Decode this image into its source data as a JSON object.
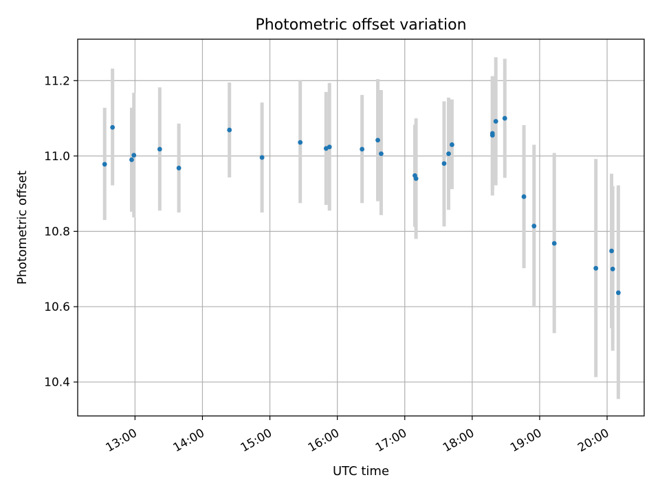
{
  "chart_data": {
    "type": "scatter",
    "title": "Photometric offset variation",
    "xlabel": "UTC time",
    "ylabel": "Photometric offset",
    "x_ticks": [
      "13:00",
      "14:00",
      "15:00",
      "16:00",
      "17:00",
      "18:00",
      "19:00",
      "20:00"
    ],
    "y_ticks": [
      "10.4",
      "10.6",
      "10.8",
      "11.0",
      "11.2"
    ],
    "xlim": [
      "12:09",
      "20:33"
    ],
    "ylim": [
      10.31,
      11.31
    ],
    "grid": true,
    "colors": {
      "marker": "#1f77b4",
      "errorbar": "#d3d3d3",
      "grid": "#b0b0b0",
      "axes": "#000000"
    },
    "series": [
      {
        "points": [
          {
            "x": "12:33",
            "y": 10.978,
            "ylow": 10.83,
            "yhigh": 11.128
          },
          {
            "x": "12:40",
            "y": 11.076,
            "ylow": 10.922,
            "yhigh": 11.232
          },
          {
            "x": "12:57",
            "y": 10.99,
            "ylow": 10.852,
            "yhigh": 11.128
          },
          {
            "x": "12:59",
            "y": 11.002,
            "ylow": 10.837,
            "yhigh": 11.168
          },
          {
            "x": "13:22",
            "y": 11.018,
            "ylow": 10.855,
            "yhigh": 11.182
          },
          {
            "x": "13:39",
            "y": 10.968,
            "ylow": 10.85,
            "yhigh": 11.086
          },
          {
            "x": "14:24",
            "y": 11.069,
            "ylow": 10.943,
            "yhigh": 11.195
          },
          {
            "x": "14:53",
            "y": 10.996,
            "ylow": 10.85,
            "yhigh": 11.142
          },
          {
            "x": "15:27",
            "y": 11.036,
            "ylow": 10.875,
            "yhigh": 11.2
          },
          {
            "x": "15:50",
            "y": 11.02,
            "ylow": 10.87,
            "yhigh": 11.17
          },
          {
            "x": "15:53",
            "y": 11.024,
            "ylow": 10.855,
            "yhigh": 11.194
          },
          {
            "x": "16:22",
            "y": 11.018,
            "ylow": 10.875,
            "yhigh": 11.162
          },
          {
            "x": "16:36",
            "y": 11.042,
            "ylow": 10.88,
            "yhigh": 11.204
          },
          {
            "x": "16:39",
            "y": 11.006,
            "ylow": 10.843,
            "yhigh": 11.175
          },
          {
            "x": "17:09",
            "y": 10.948,
            "ylow": 10.812,
            "yhigh": 11.083
          },
          {
            "x": "17:10",
            "y": 10.94,
            "ylow": 10.78,
            "yhigh": 11.1
          },
          {
            "x": "17:35",
            "y": 10.98,
            "ylow": 10.813,
            "yhigh": 11.145
          },
          {
            "x": "17:39",
            "y": 11.006,
            "ylow": 10.857,
            "yhigh": 11.155
          },
          {
            "x": "17:42",
            "y": 11.03,
            "ylow": 10.912,
            "yhigh": 11.15
          },
          {
            "x": "18:18",
            "y": 11.06,
            "ylow": 10.91,
            "yhigh": 11.21
          },
          {
            "x": "18:18",
            "y": 11.055,
            "ylow": 10.895,
            "yhigh": 11.212
          },
          {
            "x": "18:21",
            "y": 11.092,
            "ylow": 10.922,
            "yhigh": 11.262
          },
          {
            "x": "18:29",
            "y": 11.1,
            "ylow": 10.942,
            "yhigh": 11.258
          },
          {
            "x": "18:46",
            "y": 10.892,
            "ylow": 10.702,
            "yhigh": 11.082
          },
          {
            "x": "18:55",
            "y": 10.814,
            "ylow": 10.598,
            "yhigh": 11.03
          },
          {
            "x": "19:13",
            "y": 10.768,
            "ylow": 10.53,
            "yhigh": 11.008
          },
          {
            "x": "19:50",
            "y": 10.702,
            "ylow": 10.413,
            "yhigh": 10.992
          },
          {
            "x": "20:04",
            "y": 10.748,
            "ylow": 10.543,
            "yhigh": 10.953
          },
          {
            "x": "20:05",
            "y": 10.7,
            "ylow": 10.483,
            "yhigh": 10.92
          },
          {
            "x": "20:10",
            "y": 10.637,
            "ylow": 10.355,
            "yhigh": 10.922
          }
        ]
      }
    ]
  }
}
